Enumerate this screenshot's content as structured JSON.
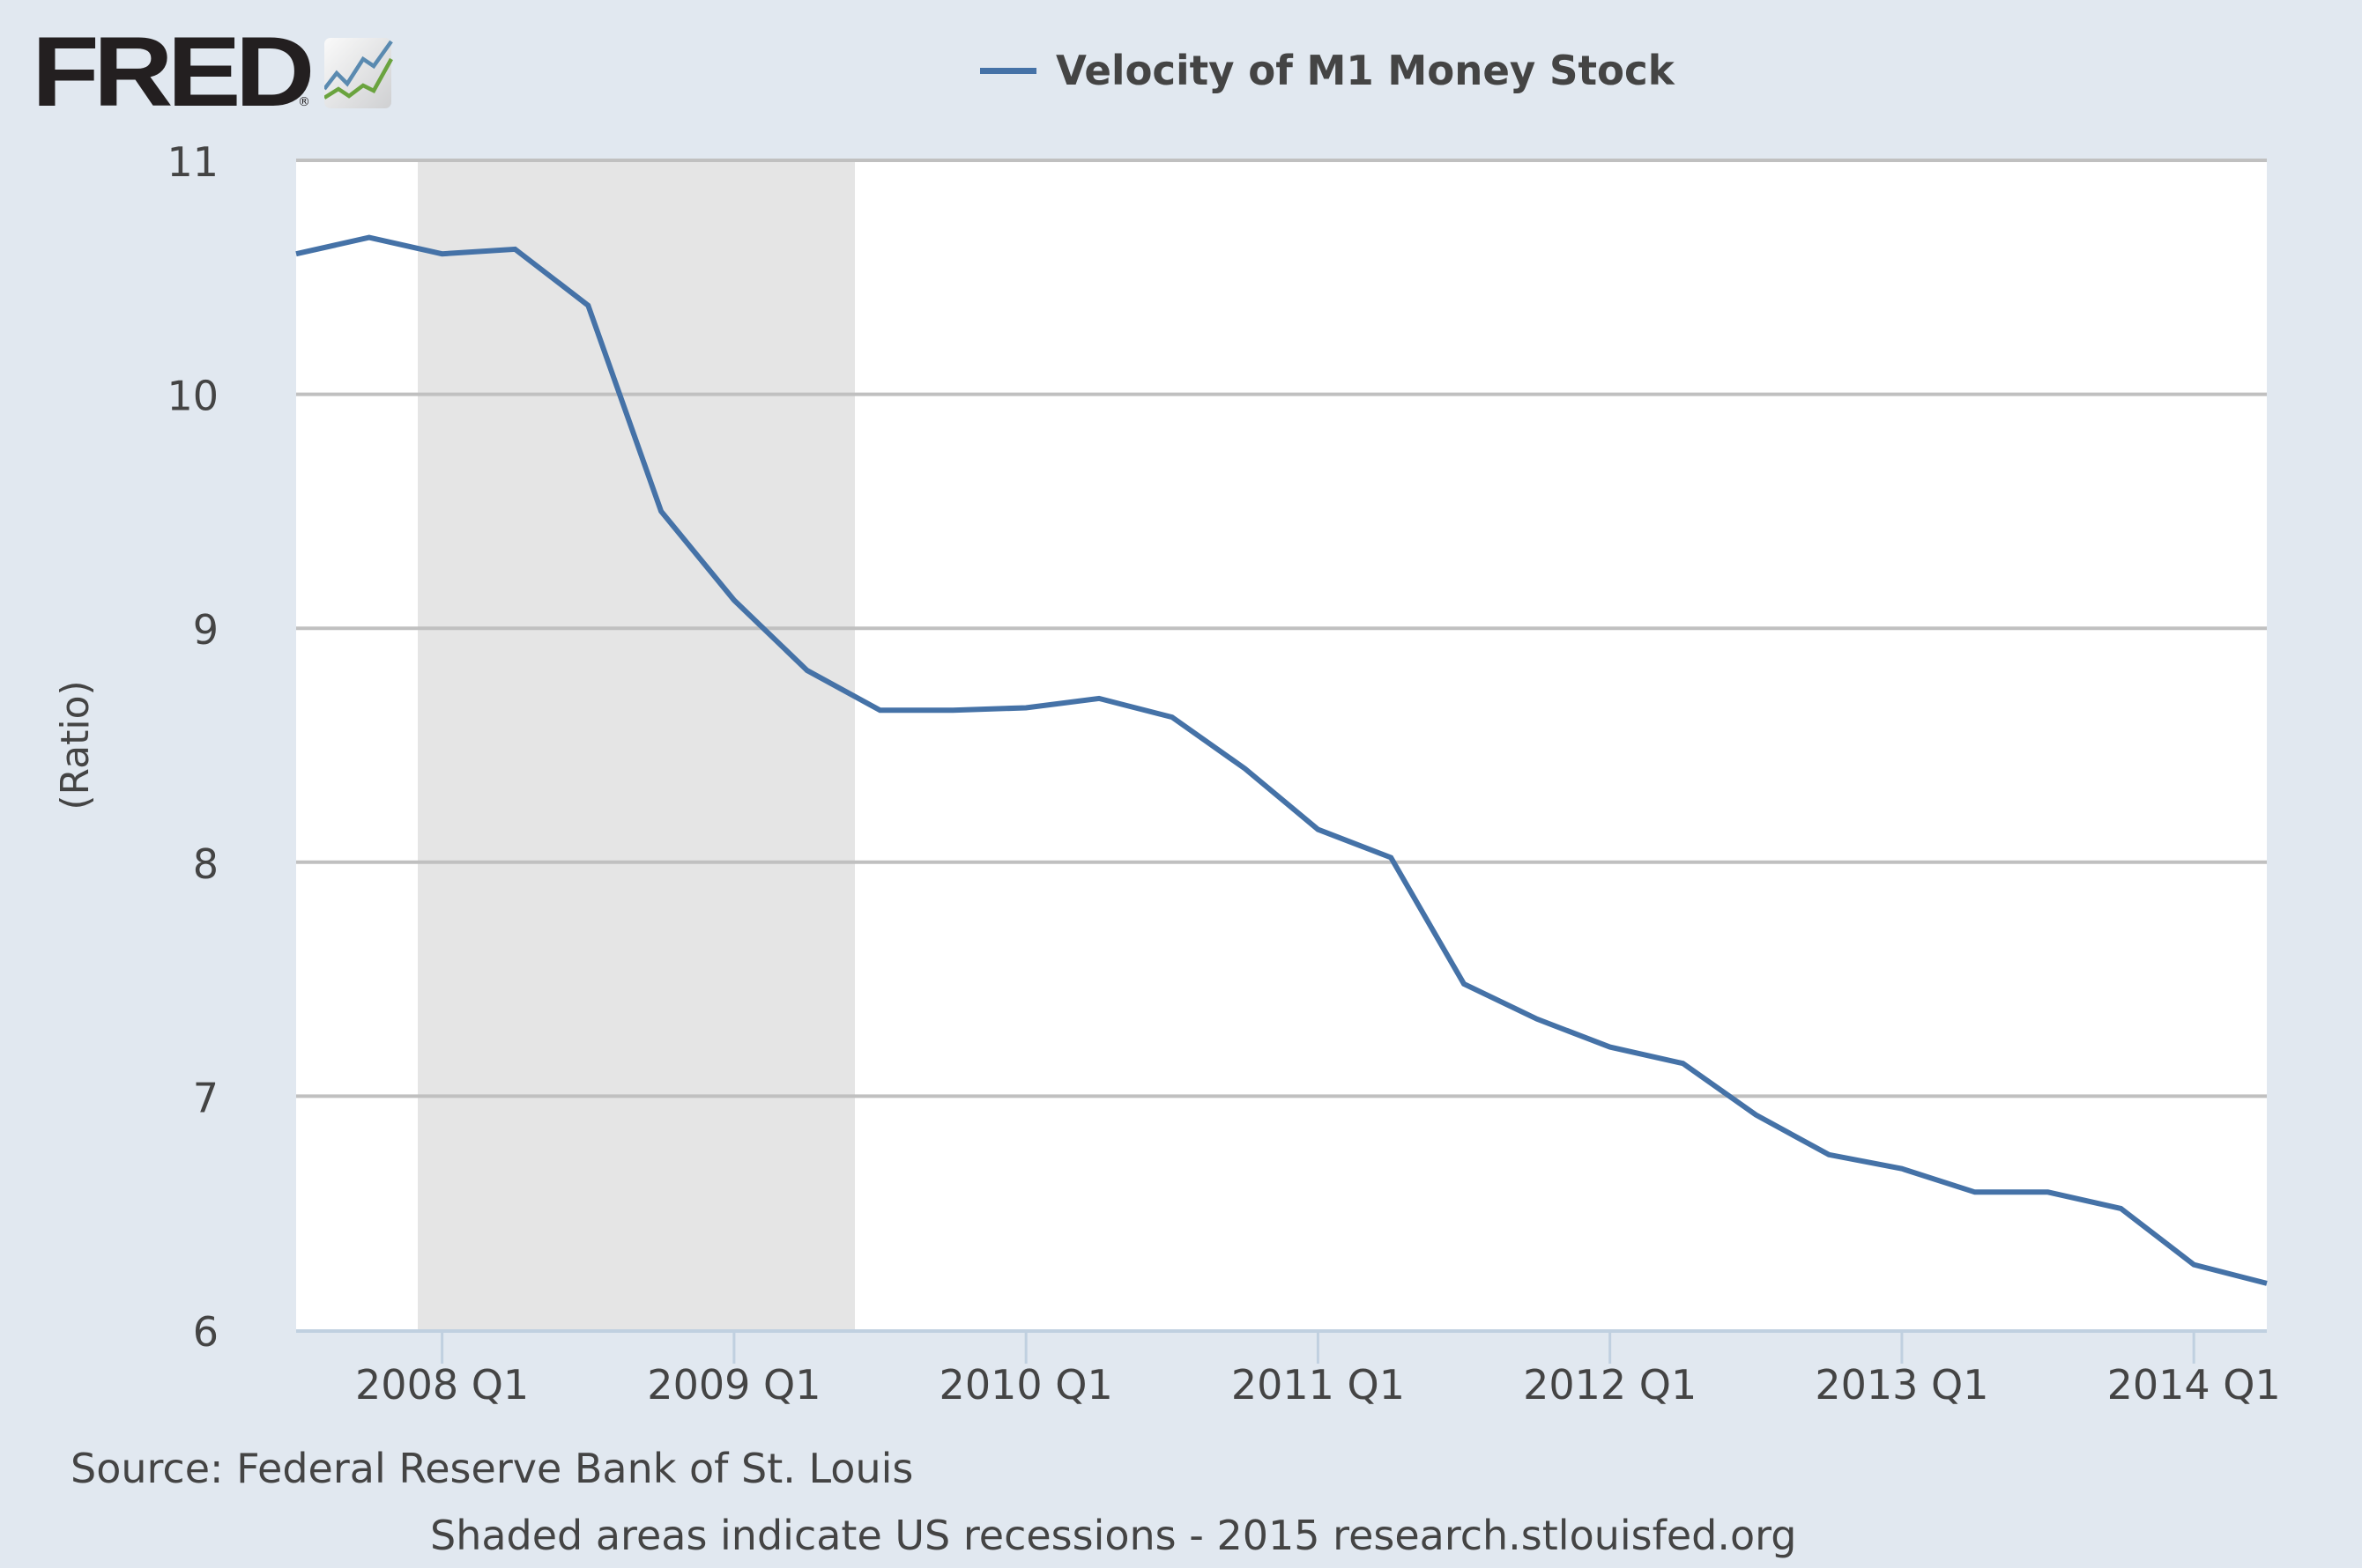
{
  "header": {
    "logo_text": "FRED",
    "logo_registered": "®",
    "logo_icon": "chart-line-icon"
  },
  "legend": {
    "label": "Velocity of M1 Money Stock",
    "color": "#4572a7"
  },
  "axis": {
    "ylabel": "(Ratio)",
    "yticks": [
      "11",
      "10",
      "9",
      "8",
      "7",
      "6"
    ],
    "xticks": [
      "2008 Q1",
      "2009 Q1",
      "2010 Q1",
      "2011 Q1",
      "2012 Q1",
      "2013 Q1",
      "2014 Q1"
    ]
  },
  "footer": {
    "source": "Source: Federal Reserve Bank of St. Louis",
    "note": "Shaded areas indicate US recessions - 2015 research.stlouisfed.org"
  },
  "colors": {
    "background": "#e1e8f0",
    "plot_background": "#ffffff",
    "recession_shade": "#e5e5e5",
    "gridline": "#c0c0c0",
    "axis_line": "#c0d0e0",
    "series": "#4572a7",
    "text": "#444444"
  },
  "chart_data": {
    "type": "line",
    "title": "Velocity of M1 Money Stock",
    "xlabel": "",
    "ylabel": "(Ratio)",
    "ylim": [
      6,
      11
    ],
    "yticks": [
      6,
      7,
      8,
      9,
      10,
      11
    ],
    "grid": true,
    "legend_position": "top",
    "x": [
      "2007 Q3",
      "2007 Q4",
      "2008 Q1",
      "2008 Q2",
      "2008 Q3",
      "2008 Q4",
      "2009 Q1",
      "2009 Q2",
      "2009 Q3",
      "2009 Q4",
      "2010 Q1",
      "2010 Q2",
      "2010 Q3",
      "2010 Q4",
      "2011 Q1",
      "2011 Q2",
      "2011 Q3",
      "2011 Q4",
      "2012 Q1",
      "2012 Q2",
      "2012 Q3",
      "2012 Q4",
      "2013 Q1",
      "2013 Q2",
      "2013 Q3",
      "2013 Q4",
      "2014 Q1",
      "2014 Q2"
    ],
    "series": [
      {
        "name": "Velocity of M1 Money Stock",
        "color": "#4572a7",
        "values": [
          10.6,
          10.67,
          10.6,
          10.62,
          10.38,
          9.5,
          9.12,
          8.82,
          8.65,
          8.65,
          8.66,
          8.7,
          8.62,
          8.4,
          8.14,
          8.02,
          7.48,
          7.33,
          7.21,
          7.14,
          6.92,
          6.75,
          6.69,
          6.59,
          6.59,
          6.52,
          6.28,
          6.2
        ]
      }
    ],
    "xtick_labels": [
      "2008 Q1",
      "2009 Q1",
      "2010 Q1",
      "2011 Q1",
      "2012 Q1",
      "2013 Q1",
      "2014 Q1"
    ],
    "shaded_regions": [
      {
        "label": "US recession",
        "start": "2007-12",
        "end": "2009-06"
      }
    ],
    "source": "Source: Federal Reserve Bank of St. Louis",
    "note": "Shaded areas indicate US recessions - 2015 research.stlouisfed.org"
  }
}
